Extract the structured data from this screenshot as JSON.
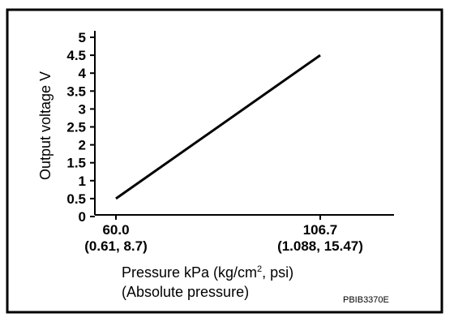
{
  "chart_data": {
    "type": "line",
    "title": "",
    "ylabel": "Output voltage V",
    "xlabel_line1": "Pressure kPa (kg/cm",
    "xlabel_sup": "2",
    "xlabel_line1_end": ", psi)",
    "xlabel_line2": "(Absolute pressure)",
    "ylim": [
      0,
      5.5
    ],
    "yticks": [
      "0",
      "0.5",
      "1",
      "1.5",
      "2",
      "2.5",
      "3",
      "3.5",
      "4",
      "4.5",
      "5"
    ],
    "xticks": [
      {
        "value": "60.0",
        "sub": "(0.61, 8.7)"
      },
      {
        "value": "106.7",
        "sub": "(1.088, 15.47)"
      }
    ],
    "series": [
      {
        "x": [
          60.0,
          106.7
        ],
        "y": [
          0.5,
          4.5
        ]
      }
    ],
    "grid": false
  },
  "figure_code": "PBIB3370E"
}
